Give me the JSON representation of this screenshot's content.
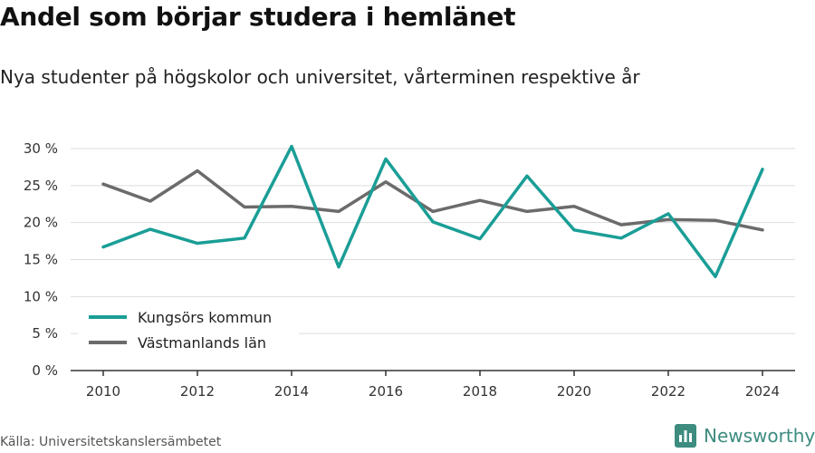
{
  "header": {
    "title": "Andel som börjar studera i hemlänet",
    "subtitle": "Nya studenter på högskolor och universitet, vårterminen respektive år"
  },
  "footer": {
    "source": "Källa: Universitetskanslersämbetet",
    "brand": "Newsworthy"
  },
  "colors": {
    "kungsor": "#1a9e96",
    "vastmanland": "#6b6b6b",
    "grid": "#dddddd",
    "axis": "#333333",
    "brand": "#3d8c7f"
  },
  "chart_data": {
    "type": "line",
    "x": [
      2010,
      2011,
      2012,
      2013,
      2014,
      2015,
      2016,
      2017,
      2018,
      2019,
      2020,
      2021,
      2022,
      2023,
      2024
    ],
    "xticks": [
      2010,
      2012,
      2014,
      2016,
      2018,
      2020,
      2022,
      2024
    ],
    "ylim": [
      0,
      30
    ],
    "yticks": [
      0,
      5,
      10,
      15,
      20,
      25,
      30
    ],
    "ytick_suffix": " %",
    "grid": true,
    "legend_position": "bottom-left",
    "series": [
      {
        "name": "Kungsörs kommun",
        "color": "#1a9e96",
        "values": [
          16.7,
          19.1,
          17.2,
          17.9,
          30.3,
          14.0,
          28.6,
          20.1,
          17.8,
          26.3,
          19.0,
          17.9,
          21.2,
          12.7,
          27.2
        ]
      },
      {
        "name": "Västmanlands län",
        "color": "#6b6b6b",
        "values": [
          25.2,
          22.9,
          27.0,
          22.1,
          22.2,
          21.5,
          25.5,
          21.5,
          23.0,
          21.5,
          22.2,
          19.7,
          20.4,
          20.3,
          19.0
        ]
      }
    ]
  }
}
